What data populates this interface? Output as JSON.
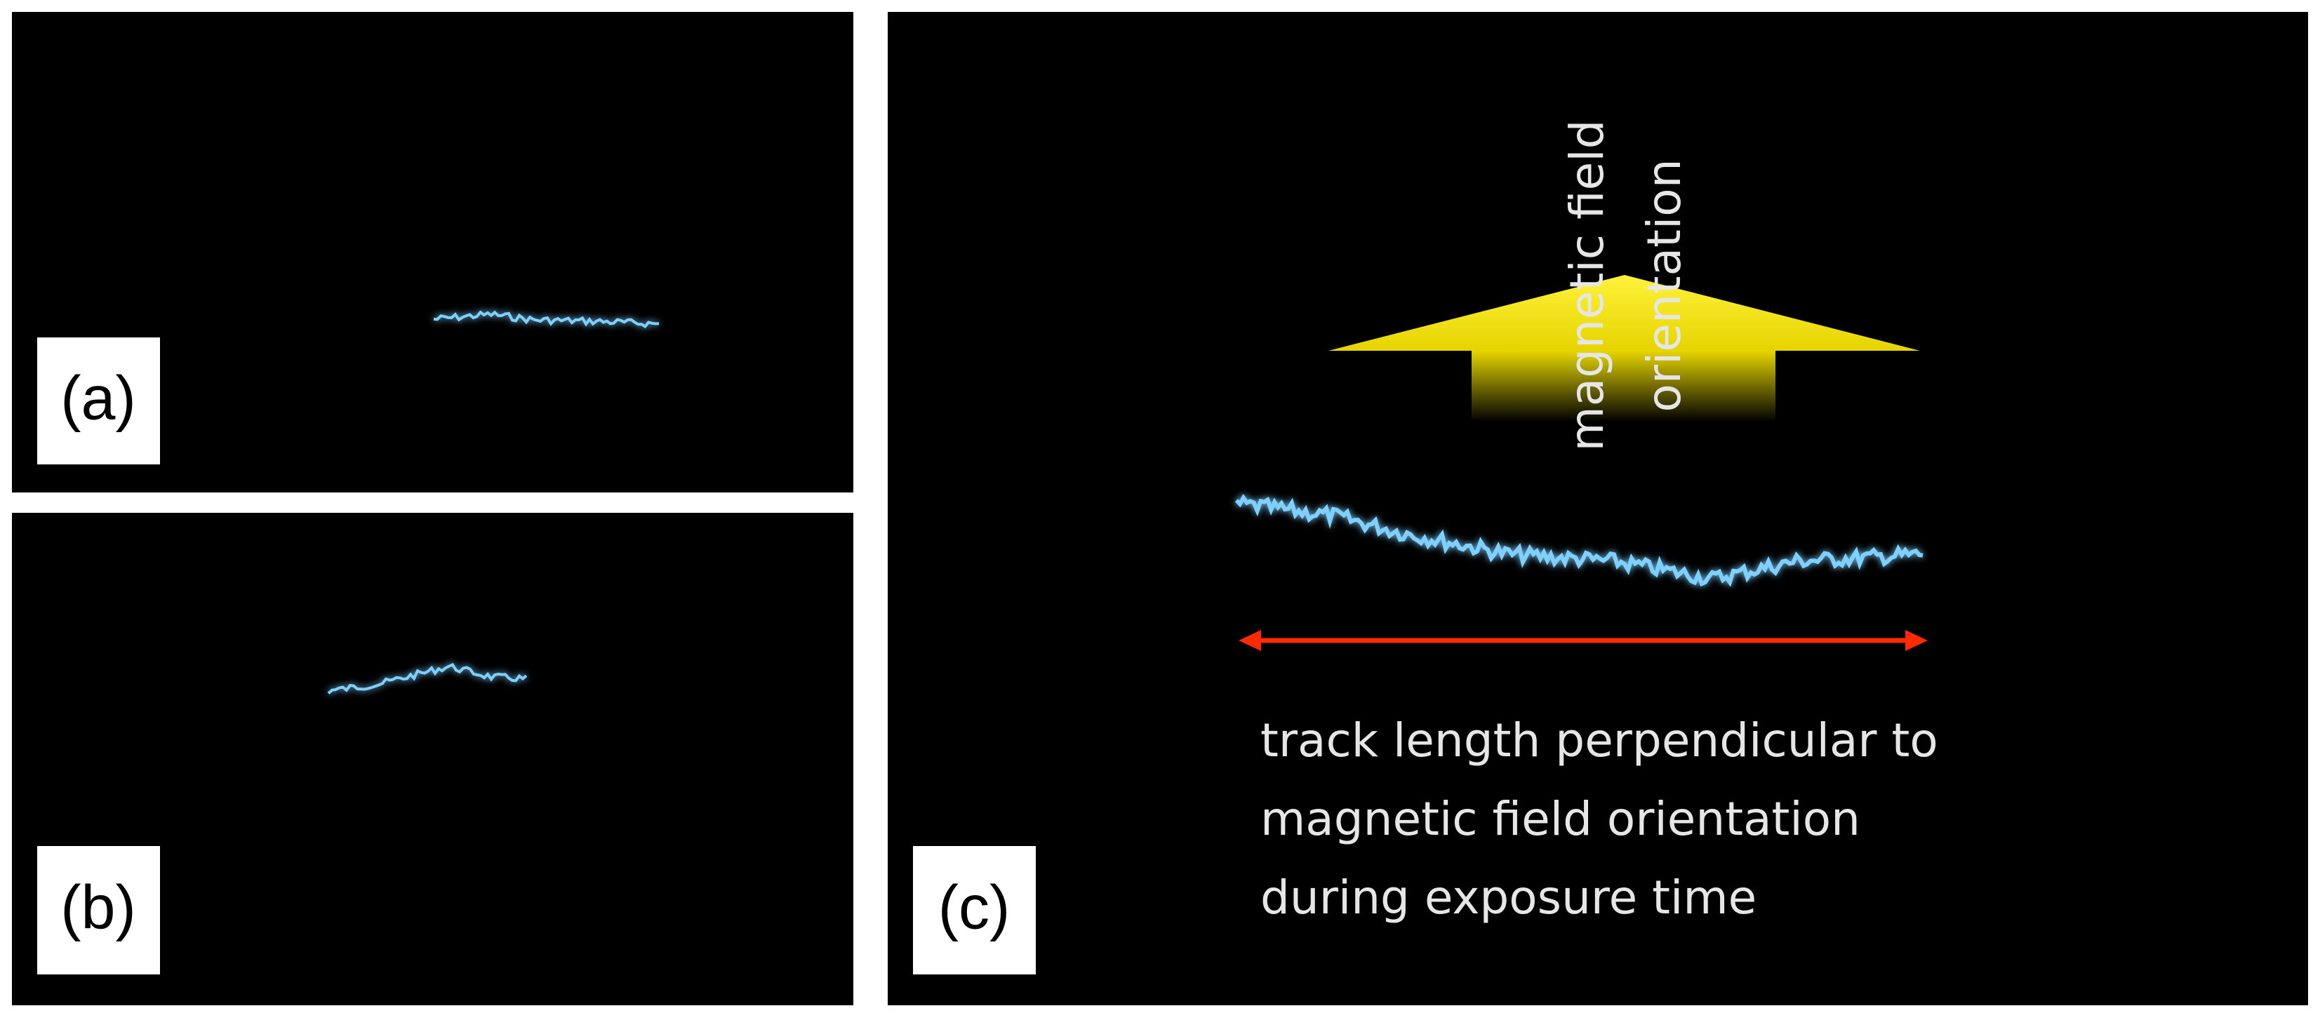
{
  "panels": [
    {
      "label": "(a)"
    },
    {
      "label": "(b)"
    },
    {
      "label": "(c)",
      "arrow_text": [
        "magnetic field",
        "orientation"
      ],
      "caption": [
        "track length perpendicular to",
        "magnetic field orientation",
        "during exposure time"
      ]
    }
  ]
}
